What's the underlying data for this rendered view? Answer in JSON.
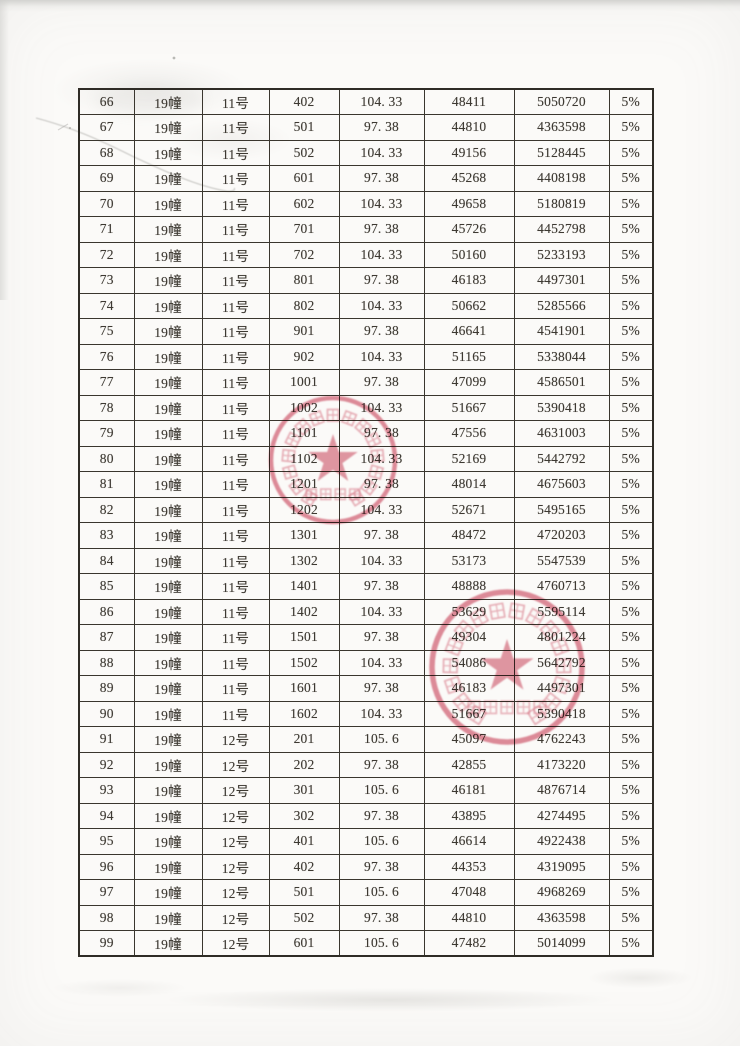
{
  "document": {
    "kind": "scanned price disclosure table",
    "language": "zh-CN",
    "page_rows_visible": "66-99"
  },
  "table": {
    "column_ids": [
      "seq",
      "building",
      "unit",
      "room",
      "area",
      "unit_price",
      "total_price",
      "ratio"
    ],
    "rows": [
      [
        "66",
        "19幢",
        "11号",
        "402",
        "104. 33",
        "48411",
        "5050720",
        "5%"
      ],
      [
        "67",
        "19幢",
        "11号",
        "501",
        "97. 38",
        "44810",
        "4363598",
        "5%"
      ],
      [
        "68",
        "19幢",
        "11号",
        "502",
        "104. 33",
        "49156",
        "5128445",
        "5%"
      ],
      [
        "69",
        "19幢",
        "11号",
        "601",
        "97. 38",
        "45268",
        "4408198",
        "5%"
      ],
      [
        "70",
        "19幢",
        "11号",
        "602",
        "104. 33",
        "49658",
        "5180819",
        "5%"
      ],
      [
        "71",
        "19幢",
        "11号",
        "701",
        "97. 38",
        "45726",
        "4452798",
        "5%"
      ],
      [
        "72",
        "19幢",
        "11号",
        "702",
        "104. 33",
        "50160",
        "5233193",
        "5%"
      ],
      [
        "73",
        "19幢",
        "11号",
        "801",
        "97. 38",
        "46183",
        "4497301",
        "5%"
      ],
      [
        "74",
        "19幢",
        "11号",
        "802",
        "104. 33",
        "50662",
        "5285566",
        "5%"
      ],
      [
        "75",
        "19幢",
        "11号",
        "901",
        "97. 38",
        "46641",
        "4541901",
        "5%"
      ],
      [
        "76",
        "19幢",
        "11号",
        "902",
        "104. 33",
        "51165",
        "5338044",
        "5%"
      ],
      [
        "77",
        "19幢",
        "11号",
        "1001",
        "97. 38",
        "47099",
        "4586501",
        "5%"
      ],
      [
        "78",
        "19幢",
        "11号",
        "1002",
        "104. 33",
        "51667",
        "5390418",
        "5%"
      ],
      [
        "79",
        "19幢",
        "11号",
        "1101",
        "97. 38",
        "47556",
        "4631003",
        "5%"
      ],
      [
        "80",
        "19幢",
        "11号",
        "1102",
        "104. 33",
        "52169",
        "5442792",
        "5%"
      ],
      [
        "81",
        "19幢",
        "11号",
        "1201",
        "97. 38",
        "48014",
        "4675603",
        "5%"
      ],
      [
        "82",
        "19幢",
        "11号",
        "1202",
        "104. 33",
        "52671",
        "5495165",
        "5%"
      ],
      [
        "83",
        "19幢",
        "11号",
        "1301",
        "97. 38",
        "48472",
        "4720203",
        "5%"
      ],
      [
        "84",
        "19幢",
        "11号",
        "1302",
        "104. 33",
        "53173",
        "5547539",
        "5%"
      ],
      [
        "85",
        "19幢",
        "11号",
        "1401",
        "97. 38",
        "48888",
        "4760713",
        "5%"
      ],
      [
        "86",
        "19幢",
        "11号",
        "1402",
        "104. 33",
        "53629",
        "5595114",
        "5%"
      ],
      [
        "87",
        "19幢",
        "11号",
        "1501",
        "97. 38",
        "49304",
        "4801224",
        "5%"
      ],
      [
        "88",
        "19幢",
        "11号",
        "1502",
        "104. 33",
        "54086",
        "5642792",
        "5%"
      ],
      [
        "89",
        "19幢",
        "11号",
        "1601",
        "97. 38",
        "46183",
        "4497301",
        "5%"
      ],
      [
        "90",
        "19幢",
        "11号",
        "1602",
        "104. 33",
        "51667",
        "5390418",
        "5%"
      ],
      [
        "91",
        "19幢",
        "12号",
        "201",
        "105. 6",
        "45097",
        "4762243",
        "5%"
      ],
      [
        "92",
        "19幢",
        "12号",
        "202",
        "97. 38",
        "42855",
        "4173220",
        "5%"
      ],
      [
        "93",
        "19幢",
        "12号",
        "301",
        "105. 6",
        "46181",
        "4876714",
        "5%"
      ],
      [
        "94",
        "19幢",
        "12号",
        "302",
        "97. 38",
        "43895",
        "4274495",
        "5%"
      ],
      [
        "95",
        "19幢",
        "12号",
        "401",
        "105. 6",
        "46614",
        "4922438",
        "5%"
      ],
      [
        "96",
        "19幢",
        "12号",
        "402",
        "97. 38",
        "44353",
        "4319095",
        "5%"
      ],
      [
        "97",
        "19幢",
        "12号",
        "501",
        "105. 6",
        "47048",
        "4968269",
        "5%"
      ],
      [
        "98",
        "19幢",
        "12号",
        "502",
        "97. 38",
        "44810",
        "4363598",
        "5%"
      ],
      [
        "99",
        "19幢",
        "12号",
        "601",
        "105. 6",
        "47482",
        "5014099",
        "5%"
      ]
    ]
  },
  "stamps": [
    {
      "name": "company-seal-stamp-upper",
      "shape": "circle-with-star",
      "text_legible": false
    },
    {
      "name": "company-seal-stamp-lower",
      "shape": "circle-with-star",
      "text_legible": false
    }
  ],
  "colors": {
    "paper": "#fbfaf8",
    "scanner_edge": "#cdcdca",
    "ink": "#3d3932",
    "table_border": "#2f2c26",
    "seal_red": "#cf5066"
  }
}
